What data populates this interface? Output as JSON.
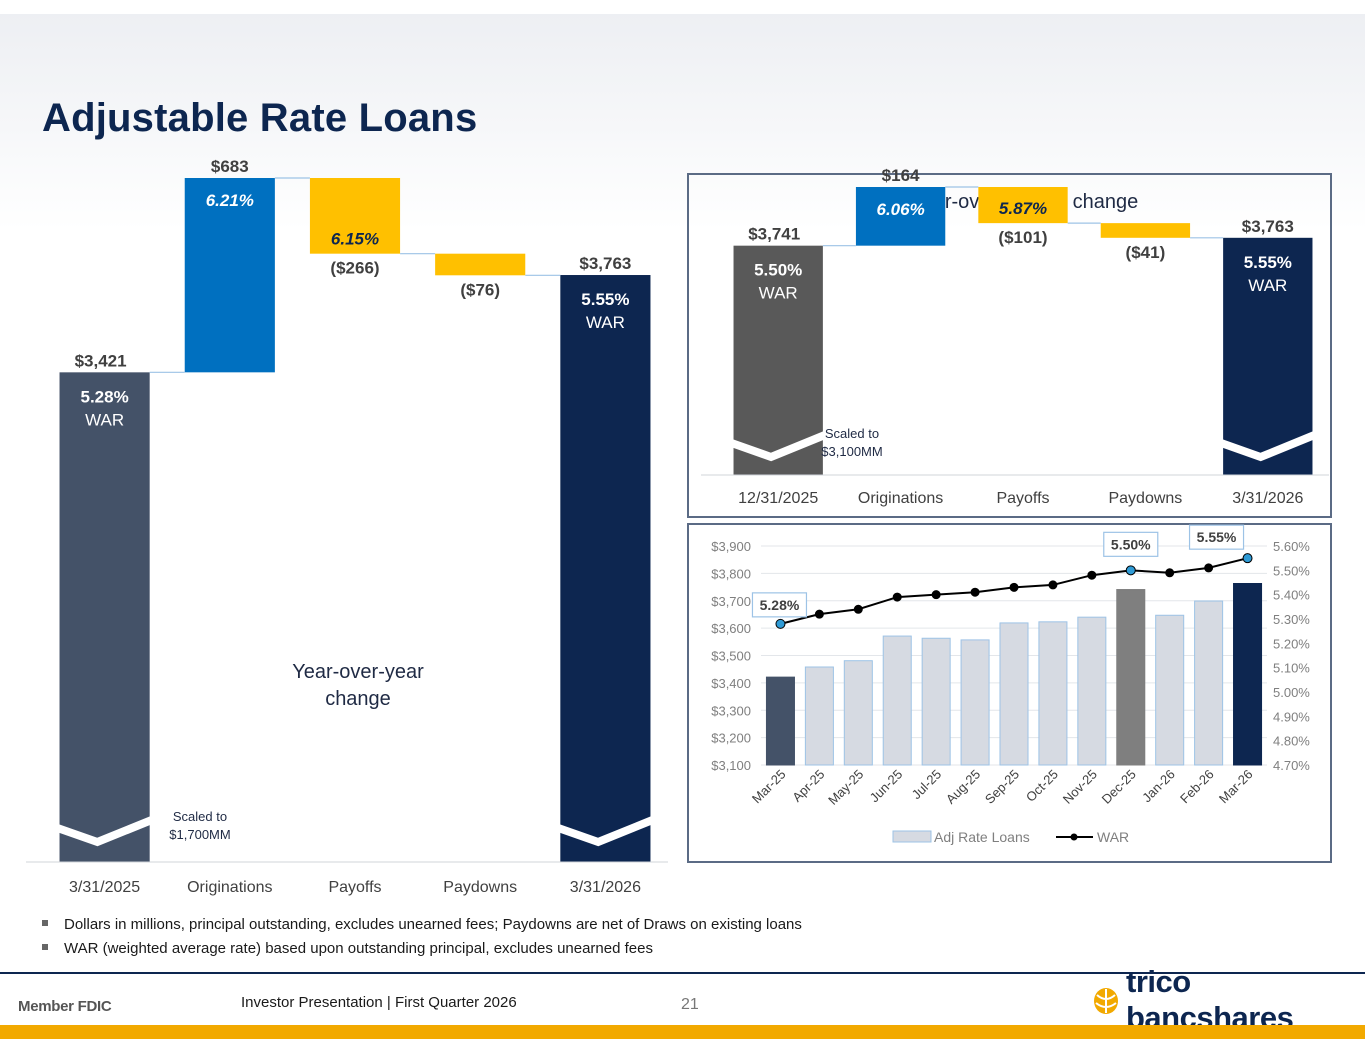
{
  "page": {
    "title": "Adjustable Rate Loans",
    "footnotes": [
      "Dollars in millions, principal outstanding, excludes unearned fees; Paydowns are net of Draws on existing loans",
      "WAR (weighted average rate) based upon outstanding principal, excludes unearned fees"
    ],
    "footer": {
      "member": "Member FDIC",
      "presentation": "Investor Presentation  |  First Quarter 2026",
      "page_number": "21",
      "logo_text": "trico bancshares"
    }
  },
  "colors": {
    "navy": "#0d2650",
    "slate": "#445268",
    "blue": "#0070c0",
    "gold": "#ffc000",
    "gray": "#595959",
    "light_bar": "#d6dae2",
    "dec_bar": "#7f7f7f",
    "connector": "#9dc3e6",
    "marker": "#2f9bd6"
  },
  "chart_data": [
    {
      "type": "bar",
      "subtype": "waterfall",
      "title": "Year-over-year change",
      "categories": [
        "3/31/2025",
        "Originations",
        "Payoffs",
        "Paydowns",
        "3/31/2026"
      ],
      "values": [
        3421,
        683,
        -266,
        -76,
        3763
      ],
      "value_labels": [
        "$3,421",
        "$683",
        "($266)",
        "($76)",
        "$3,763"
      ],
      "rate_labels": [
        "5.28%",
        "6.21%",
        "6.15%",
        "",
        "5.55%"
      ],
      "war_label": "WAR",
      "scale_note": "Scaled to $1,700MM",
      "scaled_base": 1700,
      "ylim": [
        1700,
        4104
      ]
    },
    {
      "type": "bar",
      "subtype": "waterfall",
      "title": "Quarter-over-quarter change",
      "categories": [
        "12/31/2025",
        "Originations",
        "Payoffs",
        "Paydowns",
        "3/31/2026"
      ],
      "values": [
        3741,
        164,
        -101,
        -41,
        3763
      ],
      "value_labels": [
        "$3,741",
        "$164",
        "($101)",
        "($41)",
        "$3,763"
      ],
      "rate_labels": [
        "5.50%",
        "6.06%",
        "5.87%",
        "",
        "5.55%"
      ],
      "war_label": "WAR",
      "scale_note": "Scaled to $3,100MM",
      "scaled_base": 3100,
      "ylim": [
        3100,
        3905
      ]
    },
    {
      "type": "bar",
      "subtype": "bar-line-combo",
      "categories": [
        "Mar-25",
        "Apr-25",
        "May-25",
        "Jun-25",
        "Jul-25",
        "Aug-25",
        "Sep-25",
        "Oct-25",
        "Nov-25",
        "Dec-25",
        "Jan-26",
        "Feb-26",
        "Mar-26"
      ],
      "series": [
        {
          "name": "Adj Rate Loans",
          "axis": "left",
          "values": [
            3421,
            3458,
            3481,
            3571,
            3563,
            3557,
            3619,
            3623,
            3640,
            3741,
            3647,
            3699,
            3763
          ]
        },
        {
          "name": "WAR",
          "axis": "right",
          "type": "line",
          "values": [
            5.28,
            5.32,
            5.34,
            5.39,
            5.4,
            5.41,
            5.43,
            5.44,
            5.48,
            5.5,
            5.49,
            5.51,
            5.55
          ]
        }
      ],
      "callouts": [
        {
          "index": 0,
          "label": "5.28%"
        },
        {
          "index": 9,
          "label": "5.50%"
        },
        {
          "index": 12,
          "label": "5.55%"
        }
      ],
      "ylim": [
        3100,
        3900
      ],
      "y_ticks": [
        "$3,100",
        "$3,200",
        "$3,300",
        "$3,400",
        "$3,500",
        "$3,600",
        "$3,700",
        "$3,800",
        "$3,900"
      ],
      "y2lim": [
        4.7,
        5.6
      ],
      "y2_ticks": [
        "4.70%",
        "4.80%",
        "4.90%",
        "5.00%",
        "5.10%",
        "5.20%",
        "5.30%",
        "5.40%",
        "5.50%",
        "5.60%"
      ],
      "grid": true,
      "legend": "bottom"
    }
  ]
}
